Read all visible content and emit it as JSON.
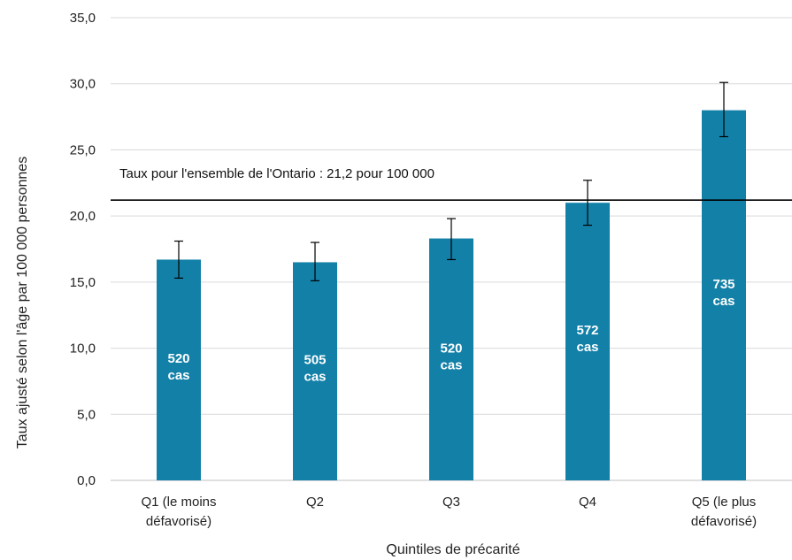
{
  "chart_data": {
    "type": "bar",
    "categories": [
      [
        "Q1 (le moins",
        "défavorisé)"
      ],
      [
        "Q2"
      ],
      [
        "Q3"
      ],
      [
        "Q4"
      ],
      [
        "Q5 (le plus",
        "défavorisé)"
      ]
    ],
    "values": [
      16.7,
      16.5,
      18.3,
      21.0,
      28.0
    ],
    "error_low": [
      15.3,
      15.1,
      16.7,
      19.3,
      26.0
    ],
    "error_high": [
      18.1,
      18.0,
      19.8,
      22.7,
      30.1
    ],
    "bar_labels": [
      [
        "520",
        "cas"
      ],
      [
        "505",
        "cas"
      ],
      [
        "520",
        "cas"
      ],
      [
        "572",
        "cas"
      ],
      [
        "735",
        "cas"
      ]
    ],
    "reference_line": {
      "value": 21.2,
      "label": "Taux pour l'ensemble de l'Ontario : 21,2 pour 100 000"
    },
    "xlabel": "Quintiles de précarité",
    "ylabel": "Taux ajusté selon l'âge par 100 000 personnes",
    "ylim": [
      0,
      35
    ],
    "yticks": [
      "0,0",
      "5,0",
      "10,0",
      "15,0",
      "20,0",
      "25,0",
      "30,0",
      "35,0"
    ],
    "grid": true,
    "legend": "none",
    "colors": {
      "bar": "#1380a8",
      "grid": "#d9d9d9",
      "axis": "#bfbfbf",
      "reference": "#000000",
      "error": "#000000"
    }
  }
}
